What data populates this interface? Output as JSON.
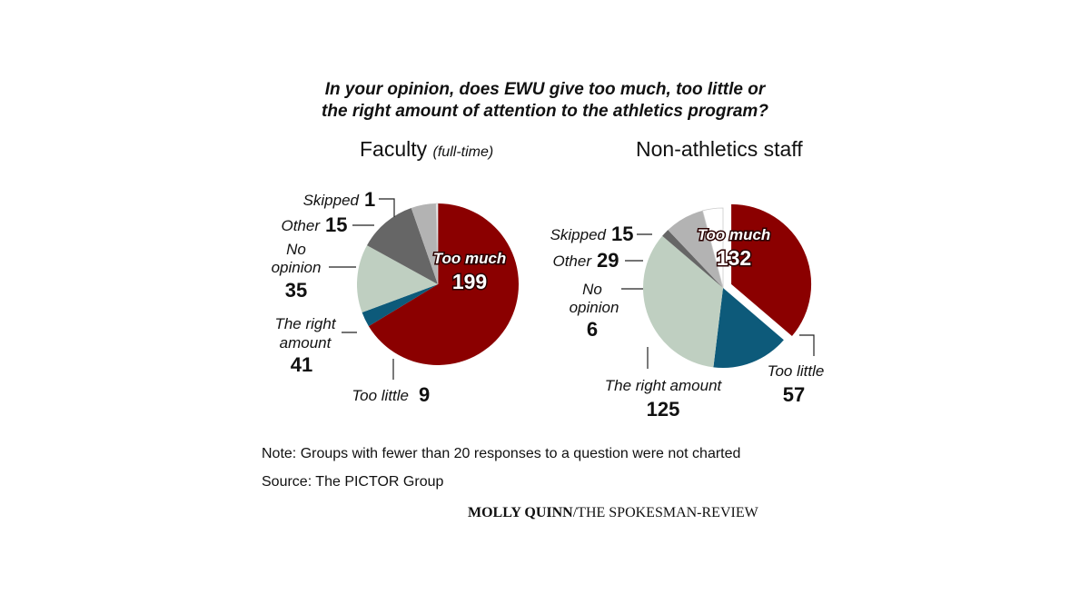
{
  "title_line1": "In your opinion, does EWU give too much, too little or",
  "title_line2": "the right amount of attention to the athletics program?",
  "note": "Note: Groups with fewer than 20 responses to a question were not charted",
  "source": "Source: The PICTOR Group",
  "credit_name": "MOLLY QUINN",
  "credit_org": "/THE SPOKESMAN-REVIEW",
  "colors": {
    "too_much": "#8b0000",
    "too_little": "#0d5a7a",
    "right_amount": "#bfcfc1",
    "no_opinion": "#666666",
    "other": "#b3b3b3",
    "skipped": "#ffffff"
  },
  "chart_data": [
    {
      "type": "pie",
      "title": "Faculty",
      "subtitle": "(full-time)",
      "categories": [
        "Too much",
        "Too little",
        "The right amount",
        "No opinion",
        "Other",
        "Skipped"
      ],
      "values": [
        199,
        9,
        41,
        35,
        15,
        1
      ],
      "label_text": [
        "Too much",
        "Too little",
        "The right amount",
        "No opinion",
        "Other",
        "Skipped"
      ]
    },
    {
      "type": "pie",
      "title": "Non-athletics staff",
      "subtitle": "",
      "categories": [
        "Too much",
        "Too little",
        "The right amount",
        "No opinion",
        "Other",
        "Skipped"
      ],
      "values": [
        132,
        57,
        125,
        6,
        29,
        15
      ],
      "label_text": [
        "Too much",
        "Too little",
        "The right amount",
        "No opinion",
        "Other",
        "Skipped"
      ]
    }
  ]
}
